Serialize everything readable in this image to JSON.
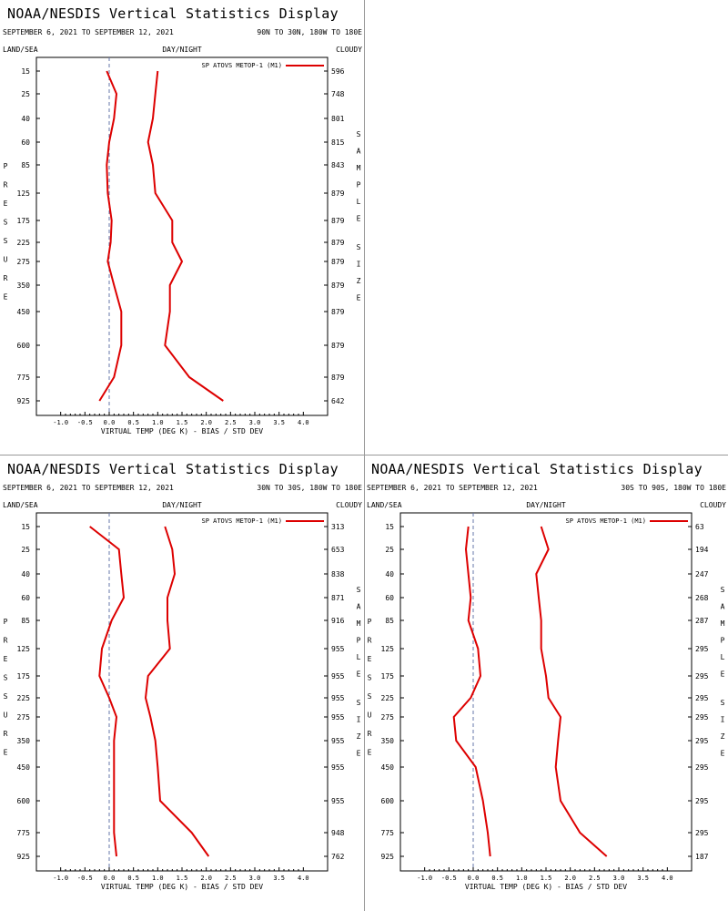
{
  "colors": {
    "line": "#dd0000",
    "axis": "#000000",
    "zero_line": "#6677aa",
    "divider": "#999999"
  },
  "common": {
    "title": "NOAA/NESDIS Vertical Statistics Display",
    "dates": "SEPTEMBER 6, 2021 TO SEPTEMBER 12, 2021",
    "land_sea": "LAND/SEA",
    "day_night": "DAY/NIGHT",
    "cloudy": "CLOUDY",
    "legend": "SP ATOVS METOP-1 (M1)",
    "xlabel": "VIRTUAL TEMP (DEG K) - BIAS / STD DEV",
    "ylabel_letters": [
      "P",
      "R",
      "E",
      "S",
      "S",
      "U",
      "R",
      "E"
    ],
    "sample_letters": [
      "S",
      "A",
      "M",
      "P",
      "L",
      "E"
    ],
    "size_letters": [
      "S",
      "I",
      "Z",
      "E"
    ],
    "xticks": [
      "-1.0",
      "-0.5",
      "0.0",
      "0.5",
      "1.0",
      "1.5",
      "2.0",
      "2.5",
      "3.0",
      "3.5",
      "4.0"
    ],
    "pressure_levels": [
      "15",
      "25",
      "40",
      "60",
      "85",
      "125",
      "175",
      "225",
      "275",
      "350",
      "450",
      "600",
      "775",
      "925"
    ]
  },
  "chart_data": [
    {
      "type": "line",
      "region": "90N TO 30N, 180W TO 180E",
      "title": "NOAA/NESDIS Vertical Statistics Display",
      "xlabel": "VIRTUAL TEMP (DEG K) - BIAS / STD DEV",
      "ylabel": "PRESSURE",
      "xlim": [
        -1.5,
        4.5
      ],
      "y_reversed": true,
      "pressure": [
        15,
        25,
        40,
        60,
        85,
        125,
        175,
        225,
        275,
        350,
        450,
        600,
        775,
        925
      ],
      "sample_size": [
        "596",
        "748",
        "801",
        "815",
        "843",
        "879",
        "879",
        "879",
        "879",
        "879",
        "879",
        "879",
        "879",
        "642"
      ],
      "series": [
        {
          "name": "SP ATOVS METOP-1 (M1)",
          "role": "bias",
          "values": [
            -0.05,
            0.15,
            0.1,
            0.0,
            -0.05,
            -0.03,
            0.05,
            0.03,
            -0.03,
            0.1,
            0.25,
            0.25,
            0.1,
            -0.2
          ]
        },
        {
          "name": "SP ATOVS METOP-1 (M1)",
          "role": "std_dev",
          "values": [
            1.0,
            0.95,
            0.9,
            0.8,
            0.9,
            0.95,
            1.3,
            1.3,
            1.5,
            1.25,
            1.25,
            1.15,
            1.65,
            2.35
          ]
        }
      ]
    },
    {
      "type": "line",
      "region": "30N TO 30S, 180W TO 180E",
      "title": "NOAA/NESDIS Vertical Statistics Display",
      "xlabel": "VIRTUAL TEMP (DEG K) - BIAS / STD DEV",
      "ylabel": "PRESSURE",
      "xlim": [
        -1.5,
        4.5
      ],
      "y_reversed": true,
      "pressure": [
        15,
        25,
        40,
        60,
        85,
        125,
        175,
        225,
        275,
        350,
        450,
        600,
        775,
        925
      ],
      "sample_size": [
        "313",
        "653",
        "838",
        "871",
        "916",
        "955",
        "955",
        "955",
        "955",
        "955",
        "955",
        "955",
        "948",
        "762"
      ],
      "series": [
        {
          "name": "SP ATOVS METOP-1 (M1)",
          "role": "bias",
          "values": [
            -0.4,
            0.2,
            0.25,
            0.3,
            0.05,
            -0.15,
            -0.2,
            0.0,
            0.15,
            0.1,
            0.1,
            0.1,
            0.1,
            0.15
          ]
        },
        {
          "name": "SP ATOVS METOP-1 (M1)",
          "role": "std_dev",
          "values": [
            1.15,
            1.3,
            1.35,
            1.2,
            1.2,
            1.25,
            0.8,
            0.75,
            0.85,
            0.95,
            1.0,
            1.05,
            1.7,
            2.05
          ]
        }
      ]
    },
    {
      "type": "line",
      "region": "30S TO 90S, 180W TO 180E",
      "title": "NOAA/NESDIS Vertical Statistics Display",
      "xlabel": "VIRTUAL TEMP (DEG K) - BIAS / STD DEV",
      "ylabel": "PRESSURE",
      "xlim": [
        -1.5,
        4.5
      ],
      "y_reversed": true,
      "pressure": [
        15,
        25,
        40,
        60,
        85,
        125,
        175,
        225,
        275,
        350,
        450,
        600,
        775,
        925
      ],
      "sample_size": [
        "63",
        "194",
        "247",
        "268",
        "287",
        "295",
        "295",
        "295",
        "295",
        "295",
        "295",
        "295",
        "295",
        "187"
      ],
      "series": [
        {
          "name": "SP ATOVS METOP-1 (M1)",
          "role": "bias",
          "values": [
            -0.1,
            -0.15,
            -0.1,
            -0.05,
            -0.1,
            0.1,
            0.15,
            -0.05,
            -0.4,
            -0.35,
            0.05,
            0.2,
            0.3,
            0.35
          ]
        },
        {
          "name": "SP ATOVS METOP-1 (M1)",
          "role": "std_dev",
          "values": [
            1.4,
            1.55,
            1.3,
            1.35,
            1.4,
            1.4,
            1.5,
            1.55,
            1.8,
            1.75,
            1.7,
            1.8,
            2.2,
            2.75
          ]
        }
      ]
    }
  ]
}
